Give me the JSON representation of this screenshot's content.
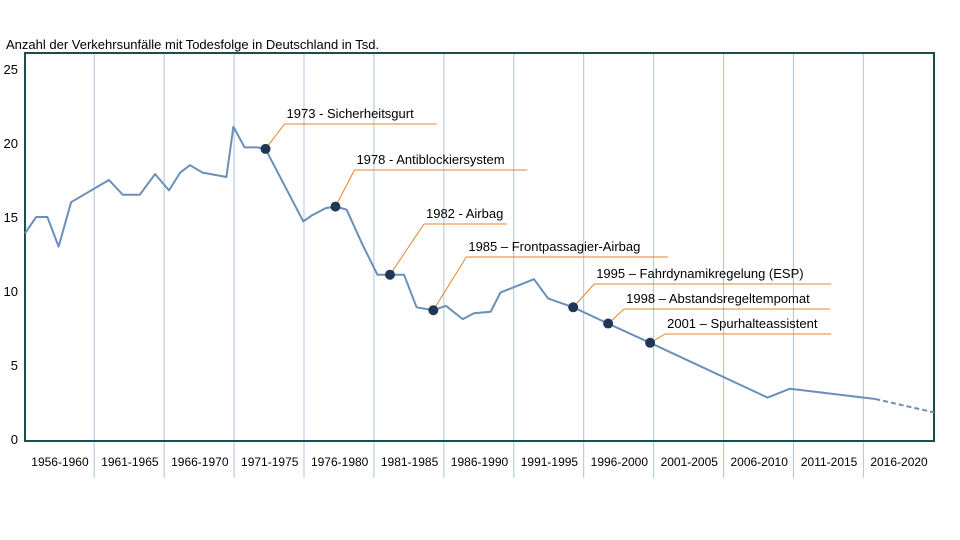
{
  "chart_data": {
    "type": "line",
    "title": "Anzahl der Verkehrsunfälle mit Todesfolge in Deutschland in Tsd.",
    "xlabel": "",
    "ylabel": "",
    "ylim": [
      0,
      25
    ],
    "yticks": [
      "0",
      "5",
      "10",
      "15",
      "20",
      "25"
    ],
    "xlim": [
      1956,
      2021
    ],
    "grid": "vertical",
    "categories": [
      "1956-1960",
      "1961-1965",
      "1966-1970",
      "1971-1975",
      "1976-1980",
      "1981-1985",
      "1986-1990",
      "1991-1995",
      "1996-2000",
      "2001-2005",
      "2006-2010",
      "2011-2015",
      "2016-2020"
    ],
    "series": [
      {
        "x": [
          1956,
          1956.8,
          1957.6,
          1958.4,
          1959.3,
          1962,
          1963,
          1964.2,
          1965.3,
          1966.3,
          1967.1,
          1967.8,
          1968.7,
          1970.4,
          1970.9,
          1971.7,
          1972.6,
          1973.2,
          1975.9,
          1976.5,
          1977.5,
          1978.2,
          1979,
          1980.1,
          1981.2,
          1982.1,
          1983.1,
          1984,
          1985.2,
          1986.1,
          1987.3,
          1988.1,
          1989.3,
          1990,
          1992.4,
          1993.4,
          1995.2,
          1997.7,
          2000.7,
          2009.1,
          2010.7,
          2016.8,
          2021
        ],
        "y": [
          13.9,
          15,
          15,
          13,
          16,
          17.5,
          16.5,
          16.5,
          17.9,
          16.8,
          18,
          18.5,
          18,
          17.7,
          21.1,
          19.7,
          19.7,
          19.6,
          14.7,
          15.1,
          15.6,
          15.7,
          15.5,
          13.2,
          11.1,
          11.1,
          11.1,
          8.9,
          8.7,
          9,
          8.1,
          8.5,
          8.6,
          9.9,
          10.8,
          9.5,
          8.9,
          7.8,
          6.5,
          2.8,
          3.4,
          2.7,
          1.8
        ],
        "dashed_from_x": 2016.8
      }
    ],
    "annotations": [
      {
        "label": "1973 - Sicherheitsgurt",
        "x": 1973.2,
        "y": 19.6
      },
      {
        "label": "1978 - Antiblockiersystem",
        "x": 1978.2,
        "y": 15.7
      },
      {
        "label": "1982 - Airbag",
        "x": 1982.1,
        "y": 11.1
      },
      {
        "label": "1985 – Frontpassagier-Airbag",
        "x": 1985.2,
        "y": 8.7
      },
      {
        "label": "1995 – Fahrdynamikregelung (ESP)",
        "x": 1995.2,
        "y": 8.9
      },
      {
        "label": "1998 – Abstandsregeltempomat",
        "x": 1997.7,
        "y": 7.8
      },
      {
        "label": "2001 – Spurhalteassistent",
        "x": 2000.7,
        "y": 6.5
      }
    ],
    "colors": {
      "line": "#6b8fb7",
      "marker": "#1f3855",
      "annotation_line": "#e8822a",
      "frame": "#1d4c4c",
      "grid": "#a9c6df"
    }
  }
}
